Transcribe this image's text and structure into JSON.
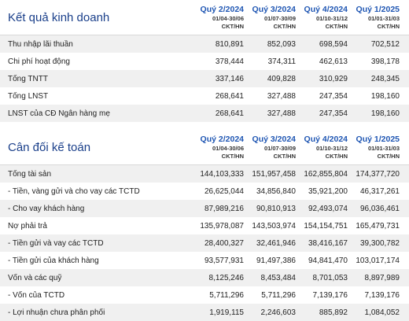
{
  "income": {
    "title": "Kết quả kinh doanh",
    "columns": [
      {
        "quarter": "Quý 2/2024",
        "dates": "01/04-30/06",
        "unit": "CKT/HN"
      },
      {
        "quarter": "Quý 3/2024",
        "dates": "01/07-30/09",
        "unit": "CKT/HN"
      },
      {
        "quarter": "Quý 4/2024",
        "dates": "01/10-31/12",
        "unit": "CKT/HN"
      },
      {
        "quarter": "Quý 1/2025",
        "dates": "01/01-31/03",
        "unit": "CKT/HN"
      }
    ],
    "rows": [
      {
        "label": "Thu nhập lãi thuần",
        "values": [
          "810,891",
          "852,093",
          "698,594",
          "702,512"
        ]
      },
      {
        "label": "Chi phí hoạt động",
        "values": [
          "378,444",
          "374,311",
          "462,613",
          "398,178"
        ]
      },
      {
        "label": "Tổng TNTT",
        "values": [
          "337,146",
          "409,828",
          "310,929",
          "248,345"
        ]
      },
      {
        "label": "Tổng LNST",
        "values": [
          "268,641",
          "327,488",
          "247,354",
          "198,160"
        ]
      },
      {
        "label": "LNST của CĐ Ngân hàng mẹ",
        "values": [
          "268,641",
          "327,488",
          "247,354",
          "198,160"
        ]
      }
    ]
  },
  "balance": {
    "title": "Cân đối kế toán",
    "columns": [
      {
        "quarter": "Quý 2/2024",
        "dates": "01/04-30/06",
        "unit": "CKT/HN"
      },
      {
        "quarter": "Quý 3/2024",
        "dates": "01/07-30/09",
        "unit": "CKT/HN"
      },
      {
        "quarter": "Quý 4/2024",
        "dates": "01/10-31/12",
        "unit": "CKT/HN"
      },
      {
        "quarter": "Quý 1/2025",
        "dates": "01/01-31/03",
        "unit": "CKT/HN"
      }
    ],
    "rows": [
      {
        "label": "Tổng tài sản",
        "values": [
          "144,103,333",
          "151,957,458",
          "162,855,804",
          "174,377,720"
        ]
      },
      {
        "label": "- Tiền, vàng gửi và cho vay các TCTD",
        "values": [
          "26,625,044",
          "34,856,840",
          "35,921,200",
          "46,317,261"
        ]
      },
      {
        "label": "- Cho vay khách hàng",
        "values": [
          "87,989,216",
          "90,810,913",
          "92,493,074",
          "96,036,461"
        ]
      },
      {
        "label": "Nợ phải trả",
        "values": [
          "135,978,087",
          "143,503,974",
          "154,154,751",
          "165,479,731"
        ]
      },
      {
        "label": "- Tiền gửi và vay các TCTD",
        "values": [
          "28,400,327",
          "32,461,946",
          "38,416,167",
          "39,300,782"
        ]
      },
      {
        "label": "- Tiền gửi của khách hàng",
        "values": [
          "93,577,931",
          "91,497,386",
          "94,841,470",
          "103,017,174"
        ]
      },
      {
        "label": "Vốn và các quỹ",
        "values": [
          "8,125,246",
          "8,453,484",
          "8,701,053",
          "8,897,989"
        ]
      },
      {
        "label": "- Vốn của TCTD",
        "values": [
          "5,711,296",
          "5,711,296",
          "7,139,176",
          "7,139,176"
        ]
      },
      {
        "label": "- Lợi nhuận chưa phân phối",
        "values": [
          "1,919,115",
          "2,246,603",
          "885,892",
          "1,084,052"
        ]
      }
    ]
  }
}
